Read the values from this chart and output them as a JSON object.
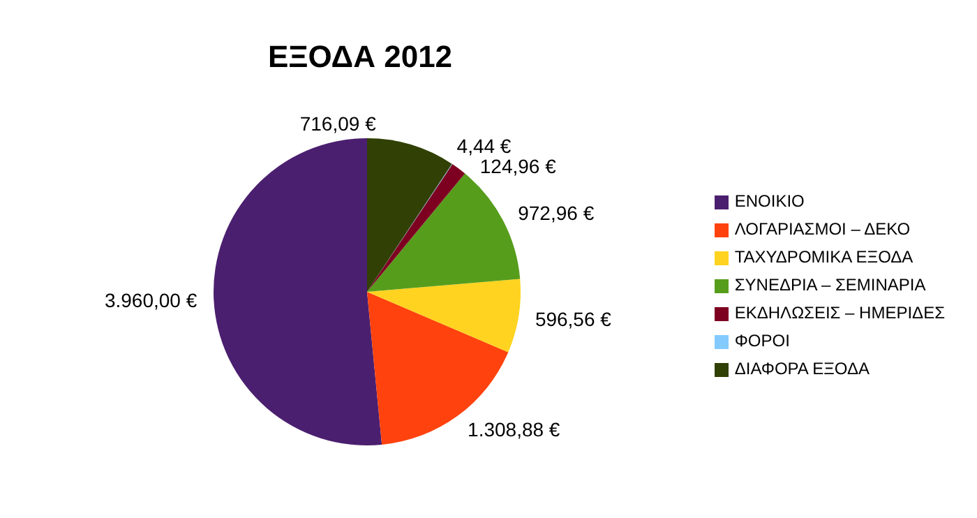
{
  "chart_data": {
    "type": "pie",
    "title": "ΕΞΟΔΑ 2012",
    "categories": [
      "ΕΝΟΙΚΙΟ",
      "ΛΟΓΑΡΙΑΣΜΟΙ – ΔΕΚΟ",
      "ΤΑΧΥΔΡΟΜΙΚΑ ΕΞΟΔΑ",
      "ΣΥΝΕΔΡΙΑ – ΣΕΜΙΝΑΡΙΑ",
      "ΕΚΔΗΛΩΣΕΙΣ – ΗΜΕΡΙΔΕΣ",
      "ΦΟΡΟΙ",
      "ΔΙΑΦΟΡΑ ΕΞΟΔΑ"
    ],
    "values": [
      3960.0,
      1308.88,
      596.56,
      972.96,
      124.96,
      4.44,
      716.09
    ],
    "value_labels": [
      "3.960,00 €",
      "1.308,88 €",
      "596,56 €",
      "972,96 €",
      "124,96 €",
      "4,44 €",
      "716,09 €"
    ],
    "colors": [
      "#4b1f6f",
      "#ff420e",
      "#ffd320",
      "#579d1c",
      "#7e0021",
      "#83caff",
      "#314004"
    ],
    "legend": "right"
  }
}
